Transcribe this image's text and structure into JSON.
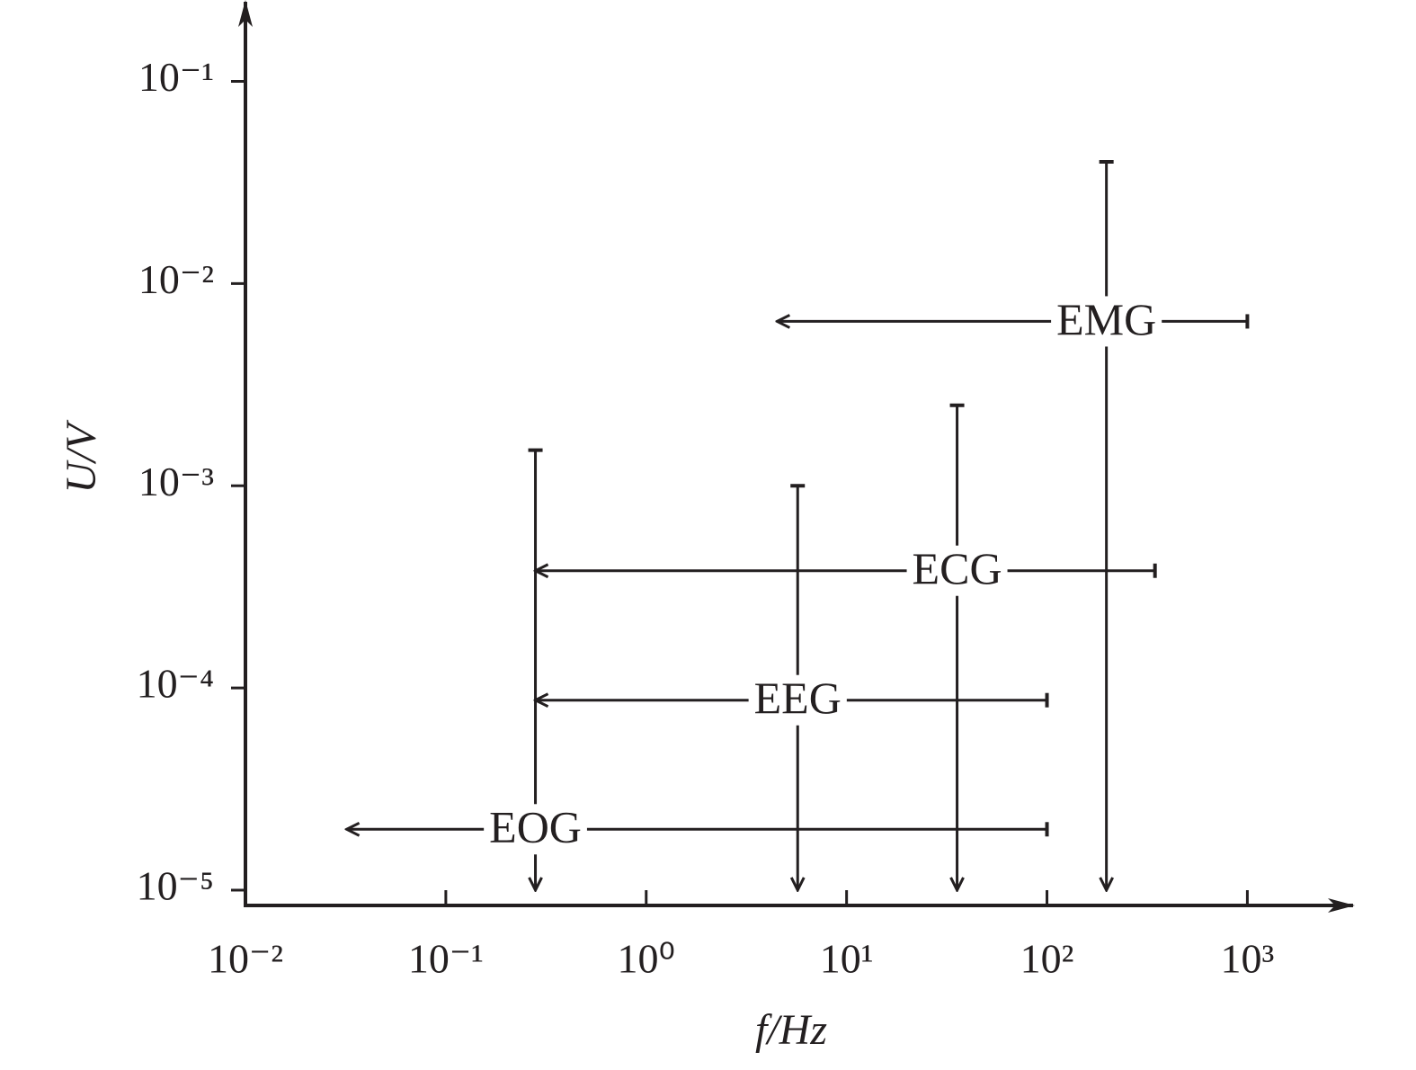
{
  "chart_data": {
    "type": "range",
    "x_label": "f/Hz",
    "y_label": "U/V",
    "xscale": "log",
    "yscale": "log",
    "xlim": [
      0.01,
      3200
    ],
    "ylim": [
      8.4e-06,
      0.24
    ],
    "xticks": [
      {
        "value": 0.01,
        "label": "10⁻²"
      },
      {
        "value": 0.1,
        "label": "10⁻¹"
      },
      {
        "value": 1,
        "label": "10⁰"
      },
      {
        "value": 10,
        "label": "10¹"
      },
      {
        "value": 100,
        "label": "10²"
      },
      {
        "value": 1000,
        "label": "10³"
      }
    ],
    "yticks": [
      {
        "value": 0.1,
        "label": "10⁻¹"
      },
      {
        "value": 0.01,
        "label": "10⁻²"
      },
      {
        "value": 0.001,
        "label": "10⁻³"
      },
      {
        "value": 0.0001,
        "label": "10⁻⁴"
      },
      {
        "value": 1e-05,
        "label": "10⁻⁵"
      }
    ],
    "color": "#231f20",
    "series": [
      {
        "name": "EOG",
        "freq_range": [
          0.032,
          100
        ],
        "freq_level": 2e-05,
        "amp_range": [
          1e-05,
          0.0015
        ],
        "amp_at": 0.28
      },
      {
        "name": "EEG",
        "freq_range": [
          0.28,
          100
        ],
        "freq_level": 8.7e-05,
        "amp_range": [
          1e-05,
          0.001
        ],
        "amp_at": 5.7
      },
      {
        "name": "ECG",
        "freq_range": [
          0.28,
          346
        ],
        "freq_level": 0.00038,
        "amp_range": [
          1e-05,
          0.0025
        ],
        "amp_at": 35.6
      },
      {
        "name": "EMG",
        "freq_range": [
          4.5,
          1000
        ],
        "freq_level": 0.0065,
        "amp_range": [
          1e-05,
          0.04
        ],
        "amp_at": 198
      }
    ]
  }
}
